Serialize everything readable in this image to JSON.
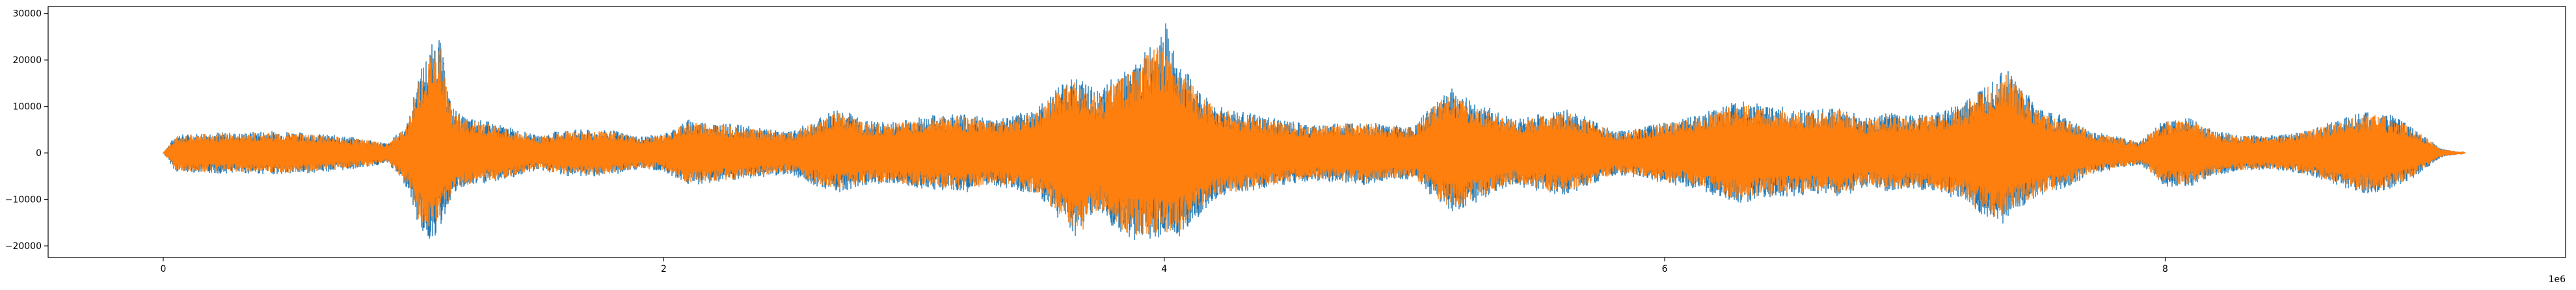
{
  "chart_data": {
    "type": "line",
    "title": "",
    "xlabel": "",
    "ylabel": "",
    "x_scale_offset": "1e6",
    "xlim": [
      -0.46,
      9.6
    ],
    "ylim": [
      -22500,
      31500
    ],
    "x_ticks": [
      {
        "value": 0,
        "label": "0"
      },
      {
        "value": 2,
        "label": "2"
      },
      {
        "value": 4,
        "label": "4"
      },
      {
        "value": 6,
        "label": "6"
      },
      {
        "value": 8,
        "label": "8"
      }
    ],
    "y_ticks": [
      {
        "value": -20000,
        "label": "−20000"
      },
      {
        "value": -10000,
        "label": "−10000"
      },
      {
        "value": 0,
        "label": "0"
      },
      {
        "value": 10000,
        "label": "10000"
      },
      {
        "value": 20000,
        "label": "20000"
      },
      {
        "value": 30000,
        "label": "30000"
      }
    ],
    "grid": false,
    "legend": "none",
    "series": [
      {
        "color": "#1f77b4",
        "x": [
          0,
          0.05,
          0.1,
          0.2,
          0.3,
          0.4,
          0.5,
          0.6,
          0.7,
          0.8,
          0.9,
          0.98,
          1.02,
          1.06,
          1.1,
          1.15,
          1.2,
          1.3,
          1.4,
          1.5,
          1.6,
          1.7,
          1.8,
          1.9,
          2.0,
          2.1,
          2.2,
          2.3,
          2.4,
          2.5,
          2.6,
          2.7,
          2.8,
          2.9,
          3.0,
          3.1,
          3.2,
          3.3,
          3.4,
          3.5,
          3.6,
          3.65,
          3.7,
          3.75,
          3.8,
          3.85,
          3.9,
          3.95,
          4.0,
          4.05,
          4.1,
          4.15,
          4.2,
          4.3,
          4.4,
          4.5,
          4.6,
          4.7,
          4.8,
          4.9,
          5.0,
          5.1,
          5.15,
          5.2,
          5.3,
          5.4,
          5.5,
          5.6,
          5.7,
          5.8,
          5.9,
          6.0,
          6.1,
          6.2,
          6.3,
          6.4,
          6.5,
          6.6,
          6.7,
          6.8,
          6.9,
          7.0,
          7.1,
          7.2,
          7.3,
          7.35,
          7.4,
          7.5,
          7.6,
          7.7,
          7.8,
          7.9,
          8.0,
          8.1,
          8.2,
          8.3,
          8.4,
          8.5,
          8.6,
          8.7,
          8.8,
          8.9,
          9.0,
          9.1,
          9.2
        ],
        "upper": [
          0,
          4000,
          4100,
          4600,
          4300,
          4800,
          4700,
          4200,
          3800,
          3100,
          2100,
          7000,
          17000,
          22000,
          26300,
          10500,
          7800,
          6800,
          5300,
          3700,
          5100,
          5000,
          4900,
          3600,
          4100,
          7300,
          6600,
          6100,
          5300,
          4600,
          6900,
          10000,
          7100,
          6600,
          7700,
          8300,
          8700,
          7400,
          8200,
          10100,
          15800,
          16500,
          14500,
          13000,
          17700,
          18000,
          20000,
          24000,
          29000,
          20000,
          16700,
          13000,
          10600,
          9100,
          7900,
          6900,
          6000,
          6600,
          7000,
          6200,
          5800,
          12600,
          14000,
          12300,
          9700,
          7300,
          8500,
          9600,
          7400,
          4800,
          5400,
          6900,
          7700,
          9600,
          11400,
          10300,
          9800,
          9300,
          10000,
          7600,
          8700,
          8000,
          9000,
          11000,
          15600,
          19000,
          16000,
          9500,
          8000,
          4800,
          3700,
          2600,
          7400,
          7600,
          4800,
          3900,
          3700,
          4100,
          5600,
          7400,
          8900,
          8400,
          5300,
          1000,
          0
        ],
        "lower": [
          0,
          -4100,
          -4200,
          -4500,
          -4400,
          -4600,
          -4700,
          -4300,
          -3900,
          -3200,
          -2300,
          -8000,
          -16000,
          -19200,
          -17500,
          -9800,
          -7600,
          -6600,
          -5300,
          -3700,
          -5000,
          -5200,
          -4800,
          -3500,
          -4000,
          -7000,
          -6500,
          -6000,
          -5200,
          -4500,
          -7000,
          -8600,
          -7000,
          -6600,
          -7500,
          -8100,
          -8600,
          -7300,
          -7800,
          -9700,
          -15500,
          -18300,
          -15000,
          -13000,
          -17200,
          -18500,
          -19300,
          -18500,
          -18300,
          -18500,
          -16000,
          -13000,
          -10000,
          -8800,
          -7700,
          -6700,
          -6000,
          -6400,
          -6900,
          -6000,
          -5700,
          -11000,
          -12700,
          -11800,
          -9400,
          -7100,
          -8300,
          -9300,
          -7200,
          -4800,
          -5300,
          -6800,
          -7400,
          -9200,
          -11000,
          -10000,
          -9400,
          -9000,
          -9700,
          -7500,
          -8400,
          -7700,
          -8700,
          -10800,
          -15000,
          -15500,
          -12400,
          -9300,
          -7800,
          -4700,
          -3600,
          -2600,
          -7300,
          -7300,
          -4800,
          -3900,
          -3600,
          -4000,
          -5500,
          -7500,
          -9000,
          -8100,
          -5200,
          -1000,
          0
        ]
      },
      {
        "color": "#ff7f0e",
        "x": [
          0,
          0.05,
          0.1,
          0.2,
          0.3,
          0.4,
          0.5,
          0.6,
          0.7,
          0.8,
          0.9,
          0.98,
          1.02,
          1.06,
          1.1,
          1.15,
          1.2,
          1.3,
          1.4,
          1.5,
          1.6,
          1.7,
          1.8,
          1.9,
          2.0,
          2.1,
          2.2,
          2.3,
          2.4,
          2.5,
          2.6,
          2.7,
          2.8,
          2.9,
          3.0,
          3.1,
          3.2,
          3.3,
          3.4,
          3.5,
          3.6,
          3.65,
          3.7,
          3.75,
          3.8,
          3.85,
          3.9,
          3.95,
          4.0,
          4.05,
          4.1,
          4.15,
          4.2,
          4.3,
          4.4,
          4.5,
          4.6,
          4.7,
          4.8,
          4.9,
          5.0,
          5.1,
          5.15,
          5.2,
          5.3,
          5.4,
          5.5,
          5.6,
          5.7,
          5.8,
          5.9,
          6.0,
          6.1,
          6.2,
          6.3,
          6.4,
          6.5,
          6.6,
          6.7,
          6.8,
          6.9,
          7.0,
          7.1,
          7.2,
          7.3,
          7.35,
          7.4,
          7.5,
          7.6,
          7.7,
          7.8,
          7.9,
          8.0,
          8.1,
          8.2,
          8.3,
          8.4,
          8.5,
          8.6,
          8.7,
          8.8,
          8.9,
          9.0,
          9.1,
          9.2
        ],
        "upper": [
          0,
          3700,
          3900,
          4300,
          4000,
          4500,
          4400,
          3900,
          3500,
          2900,
          2000,
          6500,
          16000,
          20000,
          26000,
          9800,
          7200,
          6300,
          5000,
          3500,
          4800,
          4700,
          4600,
          3400,
          3900,
          6800,
          6200,
          5700,
          5000,
          4300,
          6400,
          8800,
          6600,
          6200,
          7200,
          7800,
          8200,
          7000,
          7700,
          9500,
          14800,
          15500,
          13500,
          12200,
          16500,
          17000,
          19000,
          22500,
          23000,
          19000,
          15700,
          12200,
          9900,
          8500,
          7400,
          6500,
          5600,
          6200,
          6600,
          5800,
          5400,
          11800,
          13000,
          11500,
          9100,
          6800,
          8000,
          9000,
          6900,
          4500,
          5100,
          6400,
          7200,
          9000,
          10700,
          9700,
          9200,
          8700,
          9400,
          7100,
          8200,
          7500,
          8400,
          10300,
          14600,
          18000,
          15000,
          8900,
          7500,
          4500,
          3500,
          2400,
          6900,
          7100,
          4500,
          3700,
          3500,
          3800,
          5200,
          6900,
          8300,
          7800,
          5000,
          900,
          0
        ],
        "lower": [
          0,
          -3800,
          -4000,
          -4200,
          -4100,
          -4300,
          -4400,
          -4000,
          -3600,
          -3000,
          -2100,
          -7400,
          -15000,
          -18000,
          -16500,
          -9200,
          -7100,
          -6200,
          -5000,
          -3500,
          -4700,
          -4900,
          -4500,
          -3300,
          -3800,
          -6600,
          -6100,
          -5600,
          -4900,
          -4200,
          -6500,
          -8000,
          -6600,
          -6200,
          -7000,
          -7600,
          -8100,
          -6900,
          -7300,
          -9100,
          -14600,
          -19800,
          -14000,
          -12200,
          -16200,
          -17400,
          -18000,
          -17500,
          -17200,
          -17400,
          -15000,
          -12200,
          -9400,
          -8300,
          -7200,
          -6300,
          -5600,
          -6000,
          -6500,
          -5600,
          -5300,
          -10300,
          -11900,
          -11000,
          -8800,
          -6600,
          -7800,
          -8700,
          -6800,
          -4500,
          -5000,
          -6400,
          -6900,
          -8600,
          -10300,
          -9400,
          -8800,
          -8400,
          -9100,
          -7000,
          -7900,
          -7200,
          -8200,
          -10100,
          -14100,
          -14500,
          -11600,
          -8700,
          -7300,
          -4400,
          -3400,
          -2400,
          -6800,
          -6800,
          -4500,
          -3700,
          -3400,
          -3800,
          -5100,
          -7000,
          -8400,
          -7600,
          -4900,
          -900,
          0
        ]
      }
    ]
  }
}
